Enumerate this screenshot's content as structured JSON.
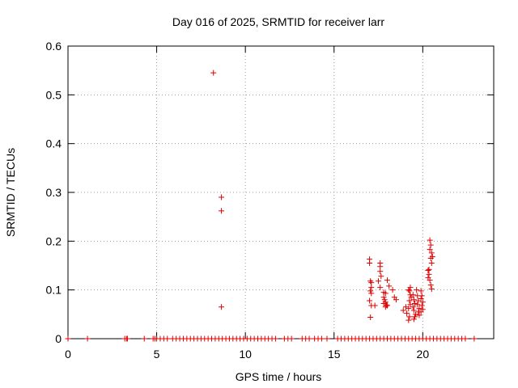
{
  "chart_data": {
    "type": "scatter",
    "title": "Day 016 of 2025, SRMTID for receiver larr",
    "xlabel": "GPS time / hours",
    "ylabel": "SRMTID / TECUs",
    "xlim": [
      0,
      24
    ],
    "ylim": [
      0,
      0.6
    ],
    "xticks": [
      0,
      5,
      10,
      15,
      20
    ],
    "xtick_labels": [
      "0",
      "5",
      "10",
      "15",
      "20"
    ],
    "yticks": [
      0,
      0.1,
      0.2,
      0.3,
      0.4,
      0.5,
      0.6
    ],
    "ytick_labels": [
      "0",
      "0.1",
      "0.2",
      "0.3",
      "0.4",
      "0.5",
      "0.6"
    ],
    "grid": true,
    "marker": "+",
    "color": "#e00000",
    "series": [
      {
        "name": "SRMTID",
        "points": [
          [
            0.0,
            0
          ],
          [
            1.1,
            0
          ],
          [
            3.2,
            0
          ],
          [
            3.3,
            0
          ],
          [
            3.35,
            0
          ],
          [
            4.3,
            0
          ],
          [
            4.8,
            0
          ],
          [
            4.9,
            0
          ],
          [
            5.0,
            0
          ],
          [
            5.2,
            0
          ],
          [
            5.4,
            0
          ],
          [
            5.6,
            0
          ],
          [
            5.9,
            0
          ],
          [
            6.1,
            0
          ],
          [
            6.3,
            0
          ],
          [
            6.5,
            0
          ],
          [
            6.7,
            0
          ],
          [
            6.9,
            0
          ],
          [
            7.1,
            0
          ],
          [
            7.3,
            0
          ],
          [
            7.5,
            0
          ],
          [
            7.7,
            0
          ],
          [
            7.9,
            0
          ],
          [
            8.1,
            0
          ],
          [
            8.3,
            0
          ],
          [
            8.5,
            0
          ],
          [
            8.7,
            0
          ],
          [
            8.9,
            0
          ],
          [
            9.1,
            0
          ],
          [
            9.3,
            0
          ],
          [
            9.5,
            0
          ],
          [
            9.7,
            0
          ],
          [
            9.9,
            0
          ],
          [
            10.1,
            0
          ],
          [
            10.3,
            0
          ],
          [
            10.5,
            0
          ],
          [
            10.7,
            0
          ],
          [
            10.9,
            0
          ],
          [
            11.1,
            0
          ],
          [
            11.3,
            0
          ],
          [
            11.5,
            0
          ],
          [
            11.7,
            0
          ],
          [
            12.2,
            0
          ],
          [
            12.4,
            0
          ],
          [
            12.6,
            0
          ],
          [
            13.2,
            0
          ],
          [
            13.4,
            0
          ],
          [
            13.6,
            0
          ],
          [
            13.9,
            0
          ],
          [
            14.1,
            0
          ],
          [
            14.3,
            0
          ],
          [
            14.6,
            0
          ],
          [
            15.2,
            0
          ],
          [
            15.4,
            0
          ],
          [
            15.6,
            0
          ],
          [
            15.8,
            0
          ],
          [
            16.0,
            0
          ],
          [
            16.2,
            0
          ],
          [
            16.4,
            0
          ],
          [
            16.6,
            0
          ],
          [
            16.8,
            0
          ],
          [
            17.0,
            0
          ],
          [
            17.2,
            0
          ],
          [
            17.4,
            0
          ],
          [
            17.6,
            0
          ],
          [
            17.8,
            0
          ],
          [
            18.0,
            0
          ],
          [
            18.2,
            0
          ],
          [
            18.4,
            0
          ],
          [
            18.6,
            0
          ],
          [
            18.8,
            0
          ],
          [
            19.0,
            0
          ],
          [
            19.2,
            0
          ],
          [
            19.4,
            0
          ],
          [
            19.6,
            0
          ],
          [
            19.8,
            0
          ],
          [
            20.0,
            0
          ],
          [
            20.2,
            0
          ],
          [
            20.4,
            0
          ],
          [
            20.6,
            0
          ],
          [
            20.8,
            0
          ],
          [
            21.0,
            0
          ],
          [
            21.2,
            0
          ],
          [
            21.4,
            0
          ],
          [
            21.6,
            0
          ],
          [
            21.8,
            0
          ],
          [
            22.0,
            0
          ],
          [
            22.2,
            0
          ],
          [
            22.4,
            0
          ],
          [
            22.9,
            0
          ],
          [
            8.2,
            0.545
          ],
          [
            8.65,
            0.29
          ],
          [
            8.65,
            0.262
          ],
          [
            8.65,
            0.065
          ],
          [
            17.0,
            0.163
          ],
          [
            17.0,
            0.155
          ],
          [
            17.05,
            0.118
          ],
          [
            17.1,
            0.115
          ],
          [
            17.1,
            0.105
          ],
          [
            17.05,
            0.098
          ],
          [
            17.1,
            0.093
          ],
          [
            17.0,
            0.078
          ],
          [
            17.1,
            0.068
          ],
          [
            17.3,
            0.068
          ],
          [
            17.05,
            0.044
          ],
          [
            17.6,
            0.155
          ],
          [
            17.6,
            0.148
          ],
          [
            17.6,
            0.138
          ],
          [
            17.65,
            0.128
          ],
          [
            17.5,
            0.118
          ],
          [
            17.6,
            0.105
          ],
          [
            17.8,
            0.095
          ],
          [
            17.9,
            0.093
          ],
          [
            17.8,
            0.085
          ],
          [
            17.85,
            0.08
          ],
          [
            17.9,
            0.075
          ],
          [
            17.8,
            0.072
          ],
          [
            17.95,
            0.069
          ],
          [
            18.0,
            0.068
          ],
          [
            17.9,
            0.065
          ],
          [
            18.0,
            0.12
          ],
          [
            18.1,
            0.108
          ],
          [
            18.3,
            0.1
          ],
          [
            18.4,
            0.085
          ],
          [
            18.5,
            0.08
          ],
          [
            18.9,
            0.058
          ],
          [
            19.05,
            0.065
          ],
          [
            19.1,
            0.052
          ],
          [
            19.2,
            0.1
          ],
          [
            19.25,
            0.098
          ],
          [
            19.3,
            0.105
          ],
          [
            19.3,
            0.09
          ],
          [
            19.35,
            0.085
          ],
          [
            19.25,
            0.078
          ],
          [
            19.3,
            0.07
          ],
          [
            19.2,
            0.062
          ],
          [
            19.25,
            0.045
          ],
          [
            19.2,
            0.038
          ],
          [
            19.45,
            0.09
          ],
          [
            19.5,
            0.08
          ],
          [
            19.55,
            0.072
          ],
          [
            19.45,
            0.065
          ],
          [
            19.5,
            0.058
          ],
          [
            19.6,
            0.05
          ],
          [
            19.55,
            0.045
          ],
          [
            19.5,
            0.04
          ],
          [
            19.65,
            0.1
          ],
          [
            19.7,
            0.088
          ],
          [
            19.75,
            0.078
          ],
          [
            19.7,
            0.07
          ],
          [
            19.8,
            0.062
          ],
          [
            19.75,
            0.055
          ],
          [
            19.8,
            0.048
          ],
          [
            19.9,
            0.098
          ],
          [
            19.95,
            0.088
          ],
          [
            19.9,
            0.082
          ],
          [
            20.0,
            0.075
          ],
          [
            19.95,
            0.068
          ],
          [
            20.0,
            0.06
          ],
          [
            19.9,
            0.055
          ],
          [
            20.3,
            0.14
          ],
          [
            20.35,
            0.132
          ],
          [
            20.3,
            0.125
          ],
          [
            20.4,
            0.12
          ],
          [
            20.45,
            0.11
          ],
          [
            20.5,
            0.102
          ],
          [
            20.4,
            0.202
          ],
          [
            20.45,
            0.192
          ],
          [
            20.4,
            0.183
          ],
          [
            20.5,
            0.176
          ],
          [
            20.55,
            0.168
          ],
          [
            20.45,
            0.165
          ],
          [
            20.5,
            0.155
          ],
          [
            20.35,
            0.142
          ]
        ]
      }
    ]
  }
}
